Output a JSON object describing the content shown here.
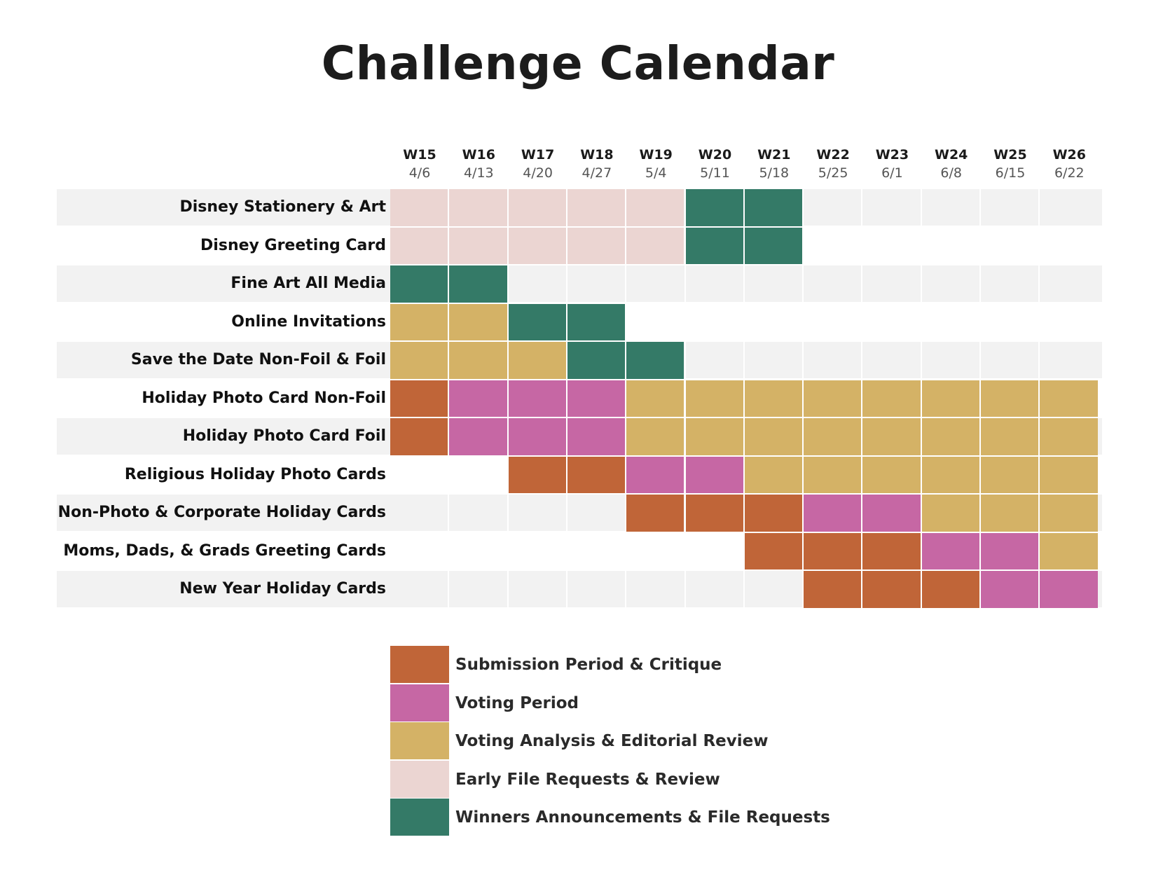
{
  "title": "Challenge Calendar",
  "chart_data": {
    "type": "table",
    "weeks": [
      {
        "label": "W15",
        "date": "4/6"
      },
      {
        "label": "W16",
        "date": "4/13"
      },
      {
        "label": "W17",
        "date": "4/20"
      },
      {
        "label": "W18",
        "date": "4/27"
      },
      {
        "label": "W19",
        "date": "5/4"
      },
      {
        "label": "W20",
        "date": "5/11"
      },
      {
        "label": "W21",
        "date": "5/18"
      },
      {
        "label": "W22",
        "date": "5/25"
      },
      {
        "label": "W23",
        "date": "6/1"
      },
      {
        "label": "W24",
        "date": "6/8"
      },
      {
        "label": "W25",
        "date": "6/15"
      },
      {
        "label": "W26",
        "date": "6/22"
      }
    ],
    "phases": {
      "S": {
        "label": "Submission Period & Critique",
        "color": "#C06538"
      },
      "V": {
        "label": "Voting Period",
        "color": "#C667A4"
      },
      "A": {
        "label": "Voting Analysis & Editorial Review",
        "color": "#D4B266"
      },
      "E": {
        "label": "Early File Requests & Review",
        "color": "#EBD5D2"
      },
      "W": {
        "label": "Winners Announcements & File Requests",
        "color": "#347A67"
      }
    },
    "legend_order": [
      "S",
      "V",
      "A",
      "E",
      "W"
    ],
    "rows": [
      {
        "label": "Disney Stationery & Art",
        "cells": [
          "E",
          "E",
          "E",
          "E",
          "E",
          "W",
          "W",
          "",
          "",
          "",
          "",
          ""
        ]
      },
      {
        "label": "Disney Greeting Card",
        "cells": [
          "E",
          "E",
          "E",
          "E",
          "E",
          "W",
          "W",
          "",
          "",
          "",
          "",
          ""
        ]
      },
      {
        "label": "Fine Art All Media",
        "cells": [
          "W",
          "W",
          "",
          "",
          "",
          "",
          "",
          "",
          "",
          "",
          "",
          ""
        ]
      },
      {
        "label": "Online Invitations",
        "cells": [
          "A",
          "A",
          "W",
          "W",
          "",
          "",
          "",
          "",
          "",
          "",
          "",
          ""
        ]
      },
      {
        "label": "Save the Date Non-Foil & Foil",
        "cells": [
          "A",
          "A",
          "A",
          "W",
          "W",
          "",
          "",
          "",
          "",
          "",
          "",
          ""
        ]
      },
      {
        "label": "Holiday Photo Card Non-Foil",
        "cells": [
          "S",
          "V",
          "V",
          "V",
          "A",
          "A",
          "A",
          "A",
          "A",
          "A",
          "A",
          "A"
        ]
      },
      {
        "label": "Holiday Photo Card Foil",
        "cells": [
          "S",
          "V",
          "V",
          "V",
          "A",
          "A",
          "A",
          "A",
          "A",
          "A",
          "A",
          "A"
        ]
      },
      {
        "label": "Religious Holiday Photo Cards",
        "cells": [
          "",
          "",
          "S",
          "S",
          "V",
          "V",
          "A",
          "A",
          "A",
          "A",
          "A",
          "A"
        ]
      },
      {
        "label": "Non-Photo & Corporate Holiday Cards",
        "cells": [
          "",
          "",
          "",
          "",
          "S",
          "S",
          "S",
          "V",
          "V",
          "A",
          "A",
          "A"
        ]
      },
      {
        "label": "Moms, Dads, & Grads Greeting Cards",
        "cells": [
          "",
          "",
          "",
          "",
          "",
          "",
          "S",
          "S",
          "S",
          "V",
          "V",
          "A"
        ]
      },
      {
        "label": "New Year Holiday Cards",
        "cells": [
          "",
          "",
          "",
          "",
          "",
          "",
          "",
          "S",
          "S",
          "S",
          "V",
          "V"
        ]
      }
    ]
  }
}
